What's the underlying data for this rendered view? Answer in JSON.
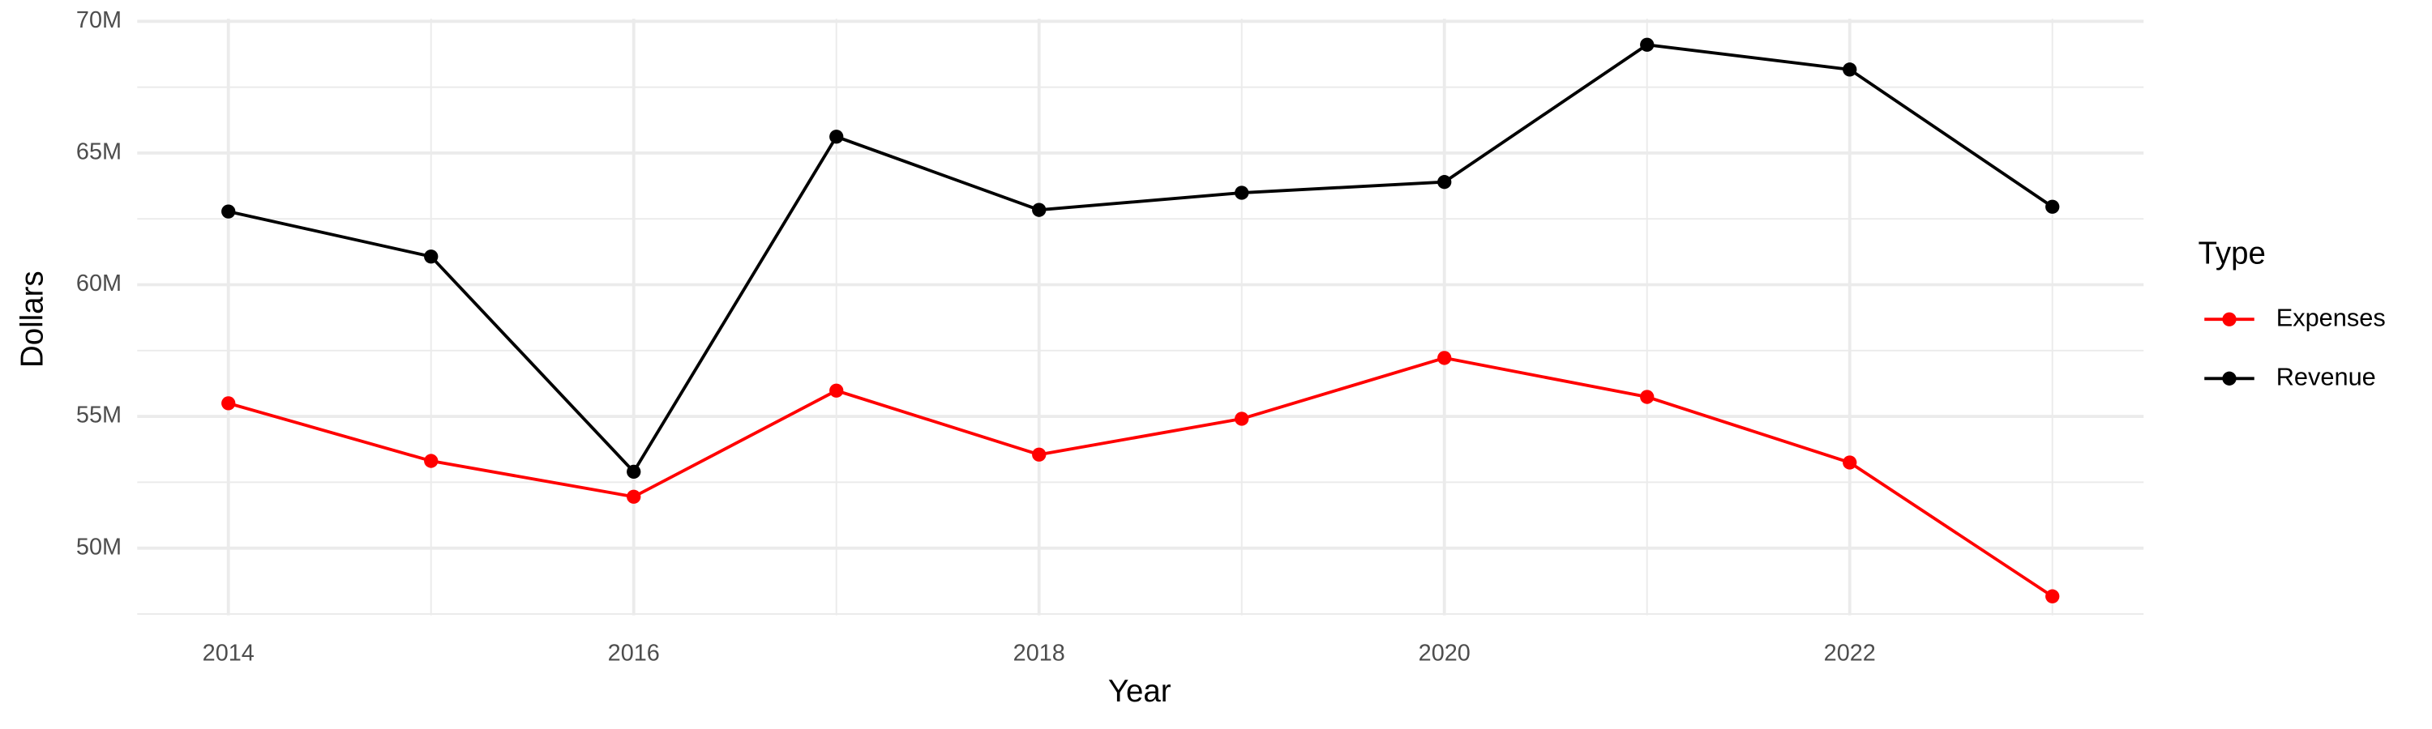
{
  "chart_data": {
    "type": "line",
    "x_label": "Year",
    "y_label": "Dollars",
    "legend_title": "Type",
    "legend": "right",
    "grid": true,
    "x": [
      2014,
      2015,
      2016,
      2017,
      2018,
      2019,
      2020,
      2021,
      2022,
      2023
    ],
    "series": [
      {
        "name": "Expenses",
        "color": "#ff0000",
        "values": [
          55500000,
          53310000,
          51950000,
          55980000,
          53550000,
          54910000,
          57220000,
          55740000,
          53250000,
          48170000
        ]
      },
      {
        "name": "Revenue",
        "color": "#000000",
        "values": [
          62780000,
          61070000,
          52900000,
          65620000,
          62840000,
          63490000,
          63900000,
          69110000,
          68170000,
          62960000
        ]
      }
    ],
    "xlim": [
      2013.55,
      2023.45
    ],
    "xticks": [
      2014,
      2016,
      2018,
      2020,
      2022
    ],
    "ylim": [
      47450000,
      70100000
    ],
    "yticks": [
      {
        "value": 50000000,
        "label": "50M"
      },
      {
        "value": 55000000,
        "label": "55M"
      },
      {
        "value": 60000000,
        "label": "60M"
      },
      {
        "value": 65000000,
        "label": "65M"
      },
      {
        "value": 70000000,
        "label": "70M"
      }
    ]
  }
}
